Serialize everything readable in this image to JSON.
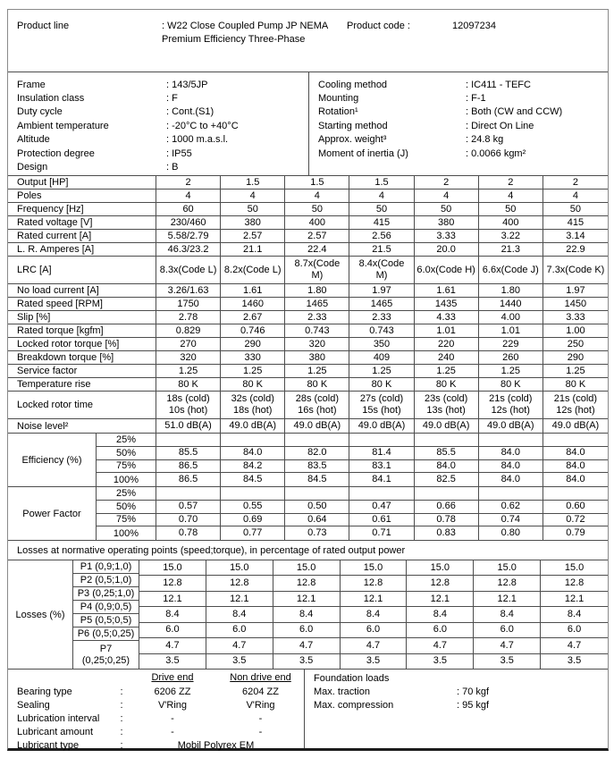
{
  "header": {
    "product_line_label": "Product line",
    "product_line_value": ": W22 Close Coupled Pump JP NEMA Premium Efficiency Three-Phase",
    "product_code_label": "Product code :",
    "product_code_value": "12097234"
  },
  "specs": {
    "left": [
      {
        "label": "Frame",
        "value": ": 143/5JP"
      },
      {
        "label": "Insulation class",
        "value": ": F"
      },
      {
        "label": "Duty cycle",
        "value": ": Cont.(S1)"
      },
      {
        "label": "Ambient temperature",
        "value": ": -20°C to +40°C"
      },
      {
        "label": "Altitude",
        "value": ": 1000 m.a.s.l."
      },
      {
        "label": "Protection degree",
        "value": ": IP55"
      },
      {
        "label": "Design",
        "value": ": B"
      }
    ],
    "right": [
      {
        "label": "Cooling method",
        "value": ": IC411 - TEFC"
      },
      {
        "label": "Mounting",
        "value": ": F-1"
      },
      {
        "label": "Rotation¹",
        "value": ": Both (CW and CCW)"
      },
      {
        "label": "Starting method",
        "value": ": Direct On Line"
      },
      {
        "label": "Approx. weight³",
        "value": ": 24.8 kg"
      },
      {
        "label": "Moment of inertia (J)",
        "value": ": 0.0066 kgm²"
      }
    ]
  },
  "ratings": {
    "rows": [
      {
        "label": "Output [HP]",
        "values": [
          "2",
          "1.5",
          "1.5",
          "1.5",
          "2",
          "2",
          "2"
        ]
      },
      {
        "label": "Poles",
        "values": [
          "4",
          "4",
          "4",
          "4",
          "4",
          "4",
          "4"
        ]
      },
      {
        "label": "Frequency [Hz]",
        "values": [
          "60",
          "50",
          "50",
          "50",
          "50",
          "50",
          "50"
        ]
      },
      {
        "label": "Rated voltage [V]",
        "values": [
          "230/460",
          "380",
          "400",
          "415",
          "380",
          "400",
          "415"
        ]
      },
      {
        "label": "Rated current [A]",
        "values": [
          "5.58/2.79",
          "2.57",
          "2.57",
          "2.56",
          "3.33",
          "3.22",
          "3.14"
        ]
      },
      {
        "label": "L. R. Amperes [A]",
        "values": [
          "46.3/23.2",
          "21.1",
          "22.4",
          "21.5",
          "20.0",
          "21.3",
          "22.9"
        ]
      },
      {
        "label": "LRC [A]",
        "tall": true,
        "values": [
          "8.3x(Code L)",
          "8.2x(Code L)",
          "8.7x(Code\nM)",
          "8.4x(Code\nM)",
          "6.0x(Code H)",
          "6.6x(Code J)",
          "7.3x(Code K)"
        ]
      },
      {
        "label": "No load current [A]",
        "values": [
          "3.26/1.63",
          "1.61",
          "1.80",
          "1.97",
          "1.61",
          "1.80",
          "1.97"
        ]
      },
      {
        "label": "Rated speed [RPM]",
        "values": [
          "1750",
          "1460",
          "1465",
          "1465",
          "1435",
          "1440",
          "1450"
        ]
      },
      {
        "label": "Slip [%]",
        "values": [
          "2.78",
          "2.67",
          "2.33",
          "2.33",
          "4.33",
          "4.00",
          "3.33"
        ]
      },
      {
        "label": "Rated torque [kgfm]",
        "values": [
          "0.829",
          "0.746",
          "0.743",
          "0.743",
          "1.01",
          "1.01",
          "1.00"
        ]
      },
      {
        "label": "Locked rotor torque [%]",
        "values": [
          "270",
          "290",
          "320",
          "350",
          "220",
          "229",
          "250"
        ]
      },
      {
        "label": "Breakdown torque [%]",
        "values": [
          "320",
          "330",
          "380",
          "409",
          "240",
          "260",
          "290"
        ]
      },
      {
        "label": "Service factor",
        "values": [
          "1.25",
          "1.25",
          "1.25",
          "1.25",
          "1.25",
          "1.25",
          "1.25"
        ]
      },
      {
        "label": "Temperature rise",
        "values": [
          "80 K",
          "80 K",
          "80 K",
          "80 K",
          "80 K",
          "80 K",
          "80 K"
        ]
      },
      {
        "label": "Locked rotor time",
        "tall": true,
        "values": [
          "18s (cold)\n10s (hot)",
          "32s (cold)\n18s (hot)",
          "28s (cold)\n16s (hot)",
          "27s (cold)\n15s (hot)",
          "23s (cold)\n13s (hot)",
          "21s (cold)\n12s (hot)",
          "21s (cold)\n12s (hot)"
        ]
      },
      {
        "label": "Noise level²",
        "values": [
          "51.0 dB(A)",
          "49.0 dB(A)",
          "49.0 dB(A)",
          "49.0 dB(A)",
          "49.0 dB(A)",
          "49.0 dB(A)",
          "49.0 dB(A)"
        ]
      }
    ]
  },
  "efficiency": {
    "label": "Efficiency (%)",
    "rows": [
      {
        "load": "25%",
        "values": [
          "",
          "",
          "",
          "",
          "",
          "",
          ""
        ]
      },
      {
        "load": "50%",
        "values": [
          "85.5",
          "84.0",
          "82.0",
          "81.4",
          "85.5",
          "84.0",
          "84.0"
        ]
      },
      {
        "load": "75%",
        "values": [
          "86.5",
          "84.2",
          "83.5",
          "83.1",
          "84.0",
          "84.0",
          "84.0"
        ]
      },
      {
        "load": "100%",
        "values": [
          "86.5",
          "84.5",
          "84.5",
          "84.1",
          "82.5",
          "84.0",
          "84.0"
        ]
      }
    ]
  },
  "power_factor": {
    "label": "Power Factor",
    "rows": [
      {
        "load": "25%",
        "values": [
          "",
          "",
          "",
          "",
          "",
          "",
          ""
        ]
      },
      {
        "load": "50%",
        "values": [
          "0.57",
          "0.55",
          "0.50",
          "0.47",
          "0.66",
          "0.62",
          "0.60"
        ]
      },
      {
        "load": "75%",
        "values": [
          "0.70",
          "0.69",
          "0.64",
          "0.61",
          "0.78",
          "0.74",
          "0.72"
        ]
      },
      {
        "load": "100%",
        "values": [
          "0.78",
          "0.77",
          "0.73",
          "0.71",
          "0.83",
          "0.80",
          "0.79"
        ]
      }
    ]
  },
  "losses": {
    "title": "Losses at normative operating points (speed;torque), in percentage of rated output power",
    "label": "Losses (%)",
    "rows": [
      {
        "point": "P1 (0,9;1,0)",
        "values": [
          "15.0",
          "15.0",
          "15.0",
          "15.0",
          "15.0",
          "15.0",
          "15.0"
        ]
      },
      {
        "point": "P2 (0,5;1,0)",
        "values": [
          "12.8",
          "12.8",
          "12.8",
          "12.8",
          "12.8",
          "12.8",
          "12.8"
        ]
      },
      {
        "point": "P3 (0,25;1,0)",
        "values": [
          "12.1",
          "12.1",
          "12.1",
          "12.1",
          "12.1",
          "12.1",
          "12.1"
        ]
      },
      {
        "point": "P4 (0,9;0,5)",
        "values": [
          "8.4",
          "8.4",
          "8.4",
          "8.4",
          "8.4",
          "8.4",
          "8.4"
        ]
      },
      {
        "point": "P5 (0,5;0,5)",
        "values": [
          "6.0",
          "6.0",
          "6.0",
          "6.0",
          "6.0",
          "6.0",
          "6.0"
        ]
      },
      {
        "point": "P6 (0,5;0,25)",
        "values": [
          "4.7",
          "4.7",
          "4.7",
          "4.7",
          "4.7",
          "4.7",
          "4.7"
        ]
      },
      {
        "point": "P7\n(0,25;0,25)",
        "values": [
          "3.5",
          "3.5",
          "3.5",
          "3.5",
          "3.5",
          "3.5",
          "3.5"
        ]
      }
    ]
  },
  "bearings": {
    "headers": {
      "de": "Drive end",
      "nde": "Non drive end"
    },
    "rows": [
      {
        "label": "Bearing type",
        "colon": ":",
        "de": "6206 ZZ",
        "nde": "6204 ZZ"
      },
      {
        "label": "Sealing",
        "colon": ":",
        "de": "V'Ring",
        "nde": "V'Ring"
      },
      {
        "label": "Lubrication interval",
        "colon": ":",
        "de": "-",
        "nde": "-"
      },
      {
        "label": "Lubricant amount",
        "colon": ":",
        "de": "-",
        "nde": "-"
      },
      {
        "label": "Lubricant type",
        "colon": ":",
        "span": "Mobil Polyrex EM"
      }
    ]
  },
  "foundation": {
    "title": "Foundation loads",
    "rows": [
      {
        "label": "Max. traction",
        "value": ": 70 kgf"
      },
      {
        "label": "Max. compression",
        "value": ": 95 kgf"
      }
    ]
  }
}
